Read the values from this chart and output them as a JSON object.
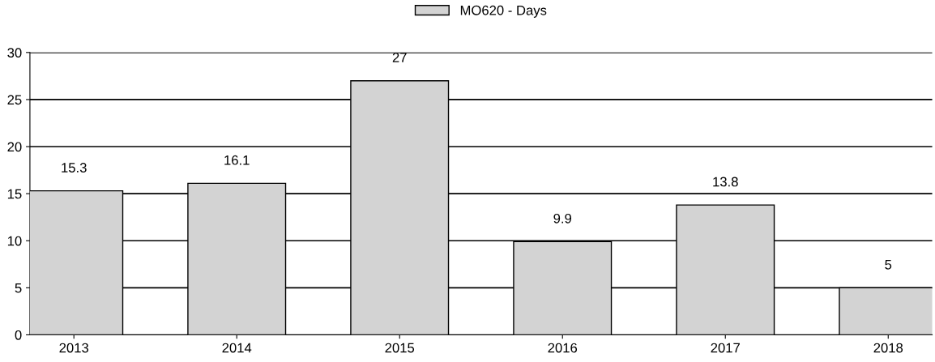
{
  "chart_data": {
    "type": "bar",
    "categories": [
      "2013",
      "2014",
      "2015",
      "2016",
      "2017",
      "2018"
    ],
    "series": [
      {
        "name": "MO620 - Days",
        "color": "#d3d3d3",
        "values": [
          15.3,
          16.1,
          27,
          9.9,
          13.8,
          5
        ]
      }
    ],
    "ylim": [
      0,
      30
    ],
    "yticks": [
      0,
      5,
      10,
      15,
      20,
      25,
      30
    ],
    "grid": "y",
    "legend": "top",
    "data_labels": true
  }
}
